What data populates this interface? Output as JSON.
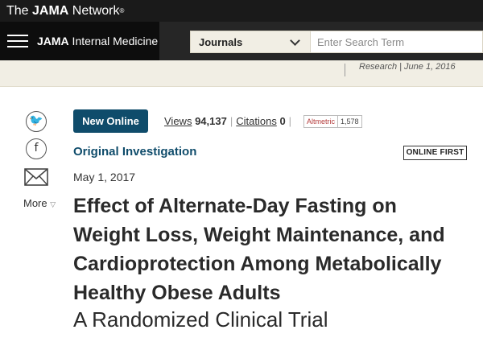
{
  "network": {
    "prefix": "The ",
    "brand": "JAMA",
    "suffix": " Network",
    "mark": "®"
  },
  "journal": {
    "brand": "JAMA",
    "name": " Internal Medicine"
  },
  "journals_select": {
    "label": "Journals"
  },
  "search": {
    "placeholder": "Enter Search Term"
  },
  "strip": {
    "text": "Research | June 1, 2016"
  },
  "share": {
    "twitter_glyph": "🐦",
    "facebook_glyph": "f",
    "more_label": "More",
    "more_arrow": "▽"
  },
  "meta": {
    "badge": "New Online",
    "views_label": "Views",
    "views_count": "94,137",
    "citations_label": "Citations",
    "citations_count": "0",
    "altmetric_label": "Altmetric",
    "altmetric_score": "1,578"
  },
  "article": {
    "type": "Original Investigation",
    "status_badge": "ONLINE FIRST",
    "date": "May 1, 2017",
    "title": "Effect of Alternate-Day Fasting on Weight Loss, Weight Maintenance, and Cardioprotection Among Metabolically Healthy Obese Adults",
    "subtitle": "A Randomized Clinical Trial"
  },
  "colors": {
    "accent": "#0f4c6b",
    "header_dark": "#1a1a1a",
    "beige": "#f1eee4"
  }
}
